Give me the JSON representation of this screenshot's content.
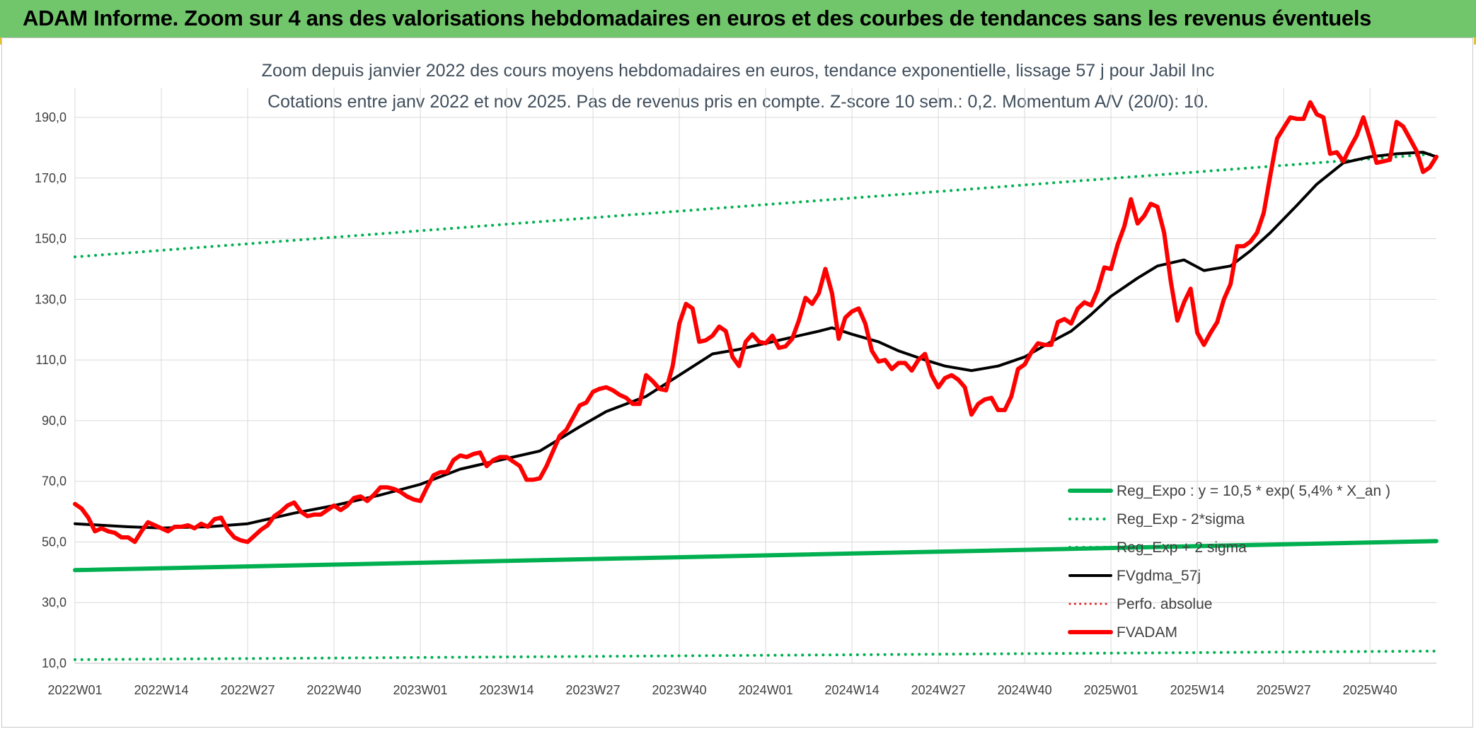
{
  "banner": {
    "title": "ADAM Informe. Zoom sur 4 ans des valorisations hebdomadaires en euros et des courbes de tendances sans les revenus éventuels"
  },
  "chart_data": {
    "type": "line",
    "title": "Zoom depuis janvier 2022 des cours moyens hebdomadaires en euros, tendance exponentielle, lissage 57 j pour Jabil Inc",
    "subtitle": "Cotations entre janv 2022 et nov 2025. Pas de revenus pris en compte. Z-score 10 sem.: 0,2. Momentum A/V (20/0): 10.",
    "xlabel": "",
    "ylabel": "",
    "ylim": [
      10,
      200
    ],
    "yticks": [
      "10,0",
      "30,0",
      "50,0",
      "70,0",
      "90,0",
      "110,0",
      "130,0",
      "150,0",
      "170,0",
      "190,0"
    ],
    "ytick_values": [
      10,
      30,
      50,
      70,
      90,
      110,
      130,
      150,
      170,
      190
    ],
    "xticks": [
      "2022W01",
      "2022W14",
      "2022W27",
      "2022W40",
      "2023W01",
      "2023W14",
      "2023W27",
      "2023W40",
      "2024W01",
      "2024W14",
      "2024W27",
      "2024W40",
      "2025W01",
      "2025W14",
      "2025W27",
      "2025W40"
    ],
    "xtick_weeks": [
      0,
      13,
      26,
      39,
      52,
      65,
      78,
      91,
      104,
      117,
      130,
      143,
      156,
      169,
      182,
      195
    ],
    "x_range_weeks": [
      0,
      205
    ],
    "grid": true,
    "legend_position": "bottom-right",
    "series": [
      {
        "name": "Reg_Expo : y = 10,5 * exp( 5,4% *  X_an )",
        "color": "#00b050",
        "style": "solid",
        "width": 6,
        "points": [
          [
            0,
            40.7
          ],
          [
            205,
            50.3
          ]
        ]
      },
      {
        "name": "Reg_Exp - 2*sigma",
        "color": "#00b050",
        "style": "dotted",
        "width": 4,
        "points": [
          [
            0,
            11.2
          ],
          [
            205,
            14.0
          ]
        ]
      },
      {
        "name": "Reg_Exp + 2 sigma",
        "color": "#00b050",
        "style": "dotted",
        "width": 4,
        "points": [
          [
            0,
            144.0
          ],
          [
            205,
            178.0
          ]
        ]
      },
      {
        "name": "FVgdma_57j",
        "color": "#000000",
        "style": "solid",
        "width": 4,
        "points": [
          [
            0,
            56
          ],
          [
            8,
            55
          ],
          [
            13,
            54.6
          ],
          [
            20,
            55
          ],
          [
            26,
            56
          ],
          [
            33,
            59.5
          ],
          [
            39,
            62
          ],
          [
            46,
            65.5
          ],
          [
            52,
            69
          ],
          [
            58,
            74
          ],
          [
            65,
            77.5
          ],
          [
            70,
            80
          ],
          [
            76,
            88
          ],
          [
            80,
            93
          ],
          [
            86,
            98
          ],
          [
            91,
            105
          ],
          [
            96,
            112
          ],
          [
            100,
            113.5
          ],
          [
            104,
            115.5
          ],
          [
            108,
            117.5
          ],
          [
            112,
            119.5
          ],
          [
            114,
            120.6
          ],
          [
            117,
            118.5
          ],
          [
            121,
            116
          ],
          [
            124,
            113
          ],
          [
            128,
            110
          ],
          [
            131,
            108
          ],
          [
            135,
            106.5
          ],
          [
            139,
            108
          ],
          [
            143,
            111
          ],
          [
            147,
            116
          ],
          [
            150,
            119.5
          ],
          [
            153,
            125
          ],
          [
            156,
            131
          ],
          [
            160,
            137
          ],
          [
            163,
            141
          ],
          [
            167,
            143
          ],
          [
            170,
            139.5
          ],
          [
            174,
            141
          ],
          [
            177,
            146
          ],
          [
            180,
            152
          ],
          [
            184,
            161
          ],
          [
            187,
            168
          ],
          [
            191,
            175
          ],
          [
            195,
            177
          ],
          [
            199,
            178
          ],
          [
            203,
            178.5
          ],
          [
            205,
            177
          ]
        ]
      },
      {
        "name": "Perfo. absolue",
        "color": "#e02020",
        "style": "dotted",
        "width": 3,
        "points": []
      },
      {
        "name": "FVADAM",
        "color": "#ff0000",
        "style": "solid",
        "width": 6,
        "points": [
          [
            0,
            62.5
          ],
          [
            1,
            61
          ],
          [
            2,
            58
          ],
          [
            3,
            53.5
          ],
          [
            4,
            54.5
          ],
          [
            5,
            53.5
          ],
          [
            6,
            53
          ],
          [
            7,
            51.5
          ],
          [
            8,
            51.5
          ],
          [
            9,
            50
          ],
          [
            10,
            53.5
          ],
          [
            11,
            56.5
          ],
          [
            12,
            55.5
          ],
          [
            13,
            54.5
          ],
          [
            14,
            53.5
          ],
          [
            15,
            55
          ],
          [
            16,
            55
          ],
          [
            17,
            55.5
          ],
          [
            18,
            54.5
          ],
          [
            19,
            56
          ],
          [
            20,
            55
          ],
          [
            21,
            57.5
          ],
          [
            22,
            58
          ],
          [
            23,
            54
          ],
          [
            24,
            51.5
          ],
          [
            25,
            50.5
          ],
          [
            26,
            50
          ],
          [
            27,
            52
          ],
          [
            28,
            54
          ],
          [
            29,
            55.5
          ],
          [
            30,
            58.5
          ],
          [
            31,
            60
          ],
          [
            32,
            62
          ],
          [
            33,
            63
          ],
          [
            34,
            60
          ],
          [
            35,
            58.5
          ],
          [
            36,
            59
          ],
          [
            37,
            59
          ],
          [
            38,
            60.5
          ],
          [
            39,
            62
          ],
          [
            40,
            60.5
          ],
          [
            41,
            62
          ],
          [
            42,
            64.5
          ],
          [
            43,
            65
          ],
          [
            44,
            63.5
          ],
          [
            45,
            65.5
          ],
          [
            46,
            68
          ],
          [
            47,
            68
          ],
          [
            48,
            67.5
          ],
          [
            49,
            66.5
          ],
          [
            50,
            65
          ],
          [
            51,
            64
          ],
          [
            52,
            63.5
          ],
          [
            53,
            68
          ],
          [
            54,
            72
          ],
          [
            55,
            73
          ],
          [
            56,
            73
          ],
          [
            57,
            77
          ],
          [
            58,
            78.5
          ],
          [
            59,
            78
          ],
          [
            60,
            79
          ],
          [
            61,
            79.5
          ],
          [
            62,
            75
          ],
          [
            63,
            77
          ],
          [
            64,
            78
          ],
          [
            65,
            78
          ],
          [
            66,
            76.5
          ],
          [
            67,
            75
          ],
          [
            68,
            70.5
          ],
          [
            69,
            70.5
          ],
          [
            70,
            71
          ],
          [
            71,
            75
          ],
          [
            72,
            80
          ],
          [
            73,
            85
          ],
          [
            74,
            87
          ],
          [
            75,
            91
          ],
          [
            76,
            95
          ],
          [
            77,
            96
          ],
          [
            78,
            99.5
          ],
          [
            79,
            100.5
          ],
          [
            80,
            101
          ],
          [
            81,
            100
          ],
          [
            82,
            98.5
          ],
          [
            83,
            97.5
          ],
          [
            84,
            95.5
          ],
          [
            85,
            95.5
          ],
          [
            86,
            105
          ],
          [
            87,
            103
          ],
          [
            88,
            100.5
          ],
          [
            89,
            100
          ],
          [
            90,
            108
          ],
          [
            91,
            122
          ],
          [
            92,
            128.5
          ],
          [
            93,
            127
          ],
          [
            94,
            116
          ],
          [
            95,
            116.5
          ],
          [
            96,
            118
          ],
          [
            97,
            121
          ],
          [
            98,
            119.5
          ],
          [
            99,
            111
          ],
          [
            100,
            108
          ],
          [
            101,
            116
          ],
          [
            102,
            118.5
          ],
          [
            103,
            116
          ],
          [
            104,
            115.5
          ],
          [
            105,
            118
          ],
          [
            106,
            114
          ],
          [
            107,
            114.5
          ],
          [
            108,
            117
          ],
          [
            109,
            123
          ],
          [
            110,
            130.5
          ],
          [
            111,
            128.5
          ],
          [
            112,
            132
          ],
          [
            113,
            140
          ],
          [
            114,
            132
          ],
          [
            115,
            117
          ],
          [
            116,
            124
          ],
          [
            117,
            126
          ],
          [
            118,
            127
          ],
          [
            119,
            122
          ],
          [
            120,
            113
          ],
          [
            121,
            109.5
          ],
          [
            122,
            110
          ],
          [
            123,
            107
          ],
          [
            124,
            109
          ],
          [
            125,
            109
          ],
          [
            126,
            106.5
          ],
          [
            127,
            110
          ],
          [
            128,
            112
          ],
          [
            129,
            105
          ],
          [
            130,
            101
          ],
          [
            131,
            104
          ],
          [
            132,
            105
          ],
          [
            133,
            103.5
          ],
          [
            134,
            101
          ],
          [
            135,
            92
          ],
          [
            136,
            95.5
          ],
          [
            137,
            97
          ],
          [
            138,
            97.5
          ],
          [
            139,
            93.5
          ],
          [
            140,
            93.5
          ],
          [
            141,
            98
          ],
          [
            142,
            107
          ],
          [
            143,
            108.5
          ],
          [
            144,
            112.5
          ],
          [
            145,
            115.5
          ],
          [
            146,
            115
          ],
          [
            147,
            115
          ],
          [
            148,
            122.5
          ],
          [
            149,
            123.5
          ],
          [
            150,
            122
          ],
          [
            151,
            127
          ],
          [
            152,
            129
          ],
          [
            153,
            128
          ],
          [
            154,
            133
          ],
          [
            155,
            140.5
          ],
          [
            156,
            140
          ],
          [
            157,
            148
          ],
          [
            158,
            154
          ],
          [
            159,
            163
          ],
          [
            160,
            155
          ],
          [
            161,
            157.5
          ],
          [
            162,
            161.5
          ],
          [
            163,
            160.5
          ],
          [
            164,
            152
          ],
          [
            165,
            136
          ],
          [
            166,
            123
          ],
          [
            167,
            129
          ],
          [
            168,
            133.5
          ],
          [
            169,
            119
          ],
          [
            170,
            115
          ],
          [
            171,
            119
          ],
          [
            172,
            122.5
          ],
          [
            173,
            130
          ],
          [
            174,
            135
          ],
          [
            175,
            147.5
          ],
          [
            176,
            147.5
          ],
          [
            177,
            149
          ],
          [
            178,
            152
          ],
          [
            179,
            158.5
          ],
          [
            180,
            171
          ],
          [
            181,
            183
          ],
          [
            182,
            186.5
          ],
          [
            183,
            190
          ],
          [
            184,
            189.5
          ],
          [
            185,
            189.5
          ],
          [
            186,
            195
          ],
          [
            187,
            191
          ],
          [
            188,
            190
          ],
          [
            189,
            178
          ],
          [
            190,
            178.5
          ],
          [
            191,
            175.5
          ],
          [
            192,
            180
          ],
          [
            193,
            184
          ],
          [
            194,
            190
          ],
          [
            195,
            183
          ],
          [
            196,
            175
          ],
          [
            197,
            175.5
          ],
          [
            198,
            176
          ],
          [
            199,
            188.5
          ],
          [
            200,
            187
          ],
          [
            201,
            183
          ],
          [
            202,
            179
          ],
          [
            203,
            172
          ],
          [
            204,
            173.5
          ],
          [
            205,
            177
          ]
        ]
      }
    ]
  }
}
